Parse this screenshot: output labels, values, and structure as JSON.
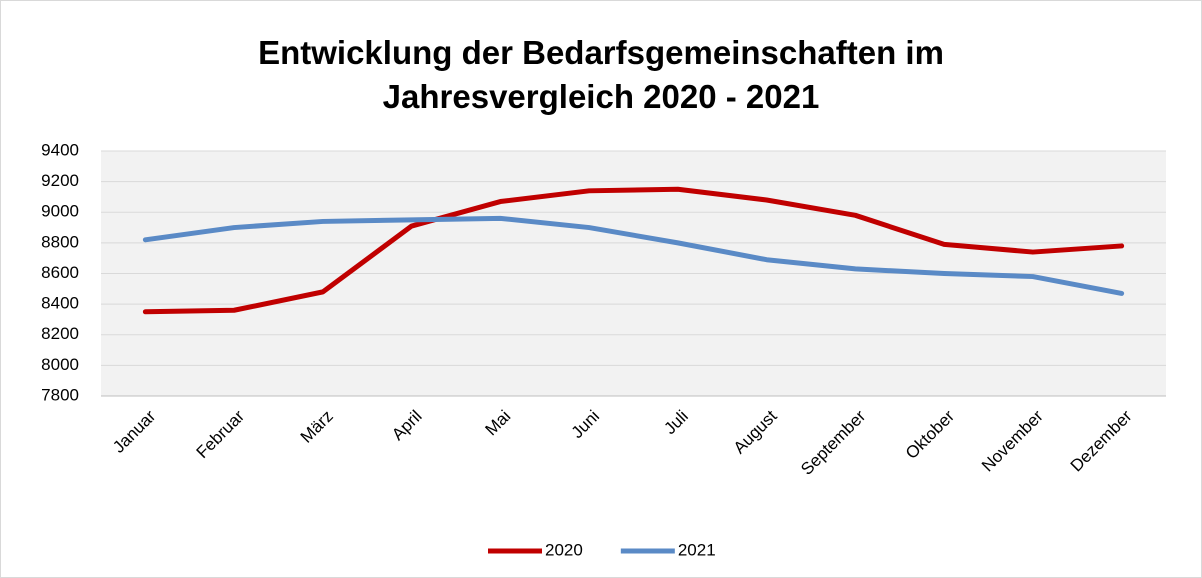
{
  "chart_data": {
    "type": "line",
    "title": "Entwicklung der Bedarfsgemeinschaften im Jahresvergleich 2020 - 2021",
    "categories": [
      "Januar",
      "Februar",
      "März",
      "April",
      "Mai",
      "Juni",
      "Juli",
      "August",
      "September",
      "Oktober",
      "November",
      "Dezember"
    ],
    "series": [
      {
        "name": "2020",
        "color": "#c00000",
        "values": [
          8350,
          8360,
          8480,
          8910,
          9070,
          9140,
          9150,
          9080,
          8980,
          8790,
          8740,
          8780
        ]
      },
      {
        "name": "2021",
        "color": "#5a8ac6",
        "values": [
          8820,
          8900,
          8940,
          8950,
          8960,
          8900,
          8800,
          8690,
          8630,
          8600,
          8580,
          8470
        ]
      }
    ],
    "ylim": [
      7800,
      9400
    ],
    "yticks": [
      7800,
      8000,
      8200,
      8400,
      8600,
      8800,
      9000,
      9200,
      9400
    ],
    "grid": true,
    "legend": "bottom"
  }
}
